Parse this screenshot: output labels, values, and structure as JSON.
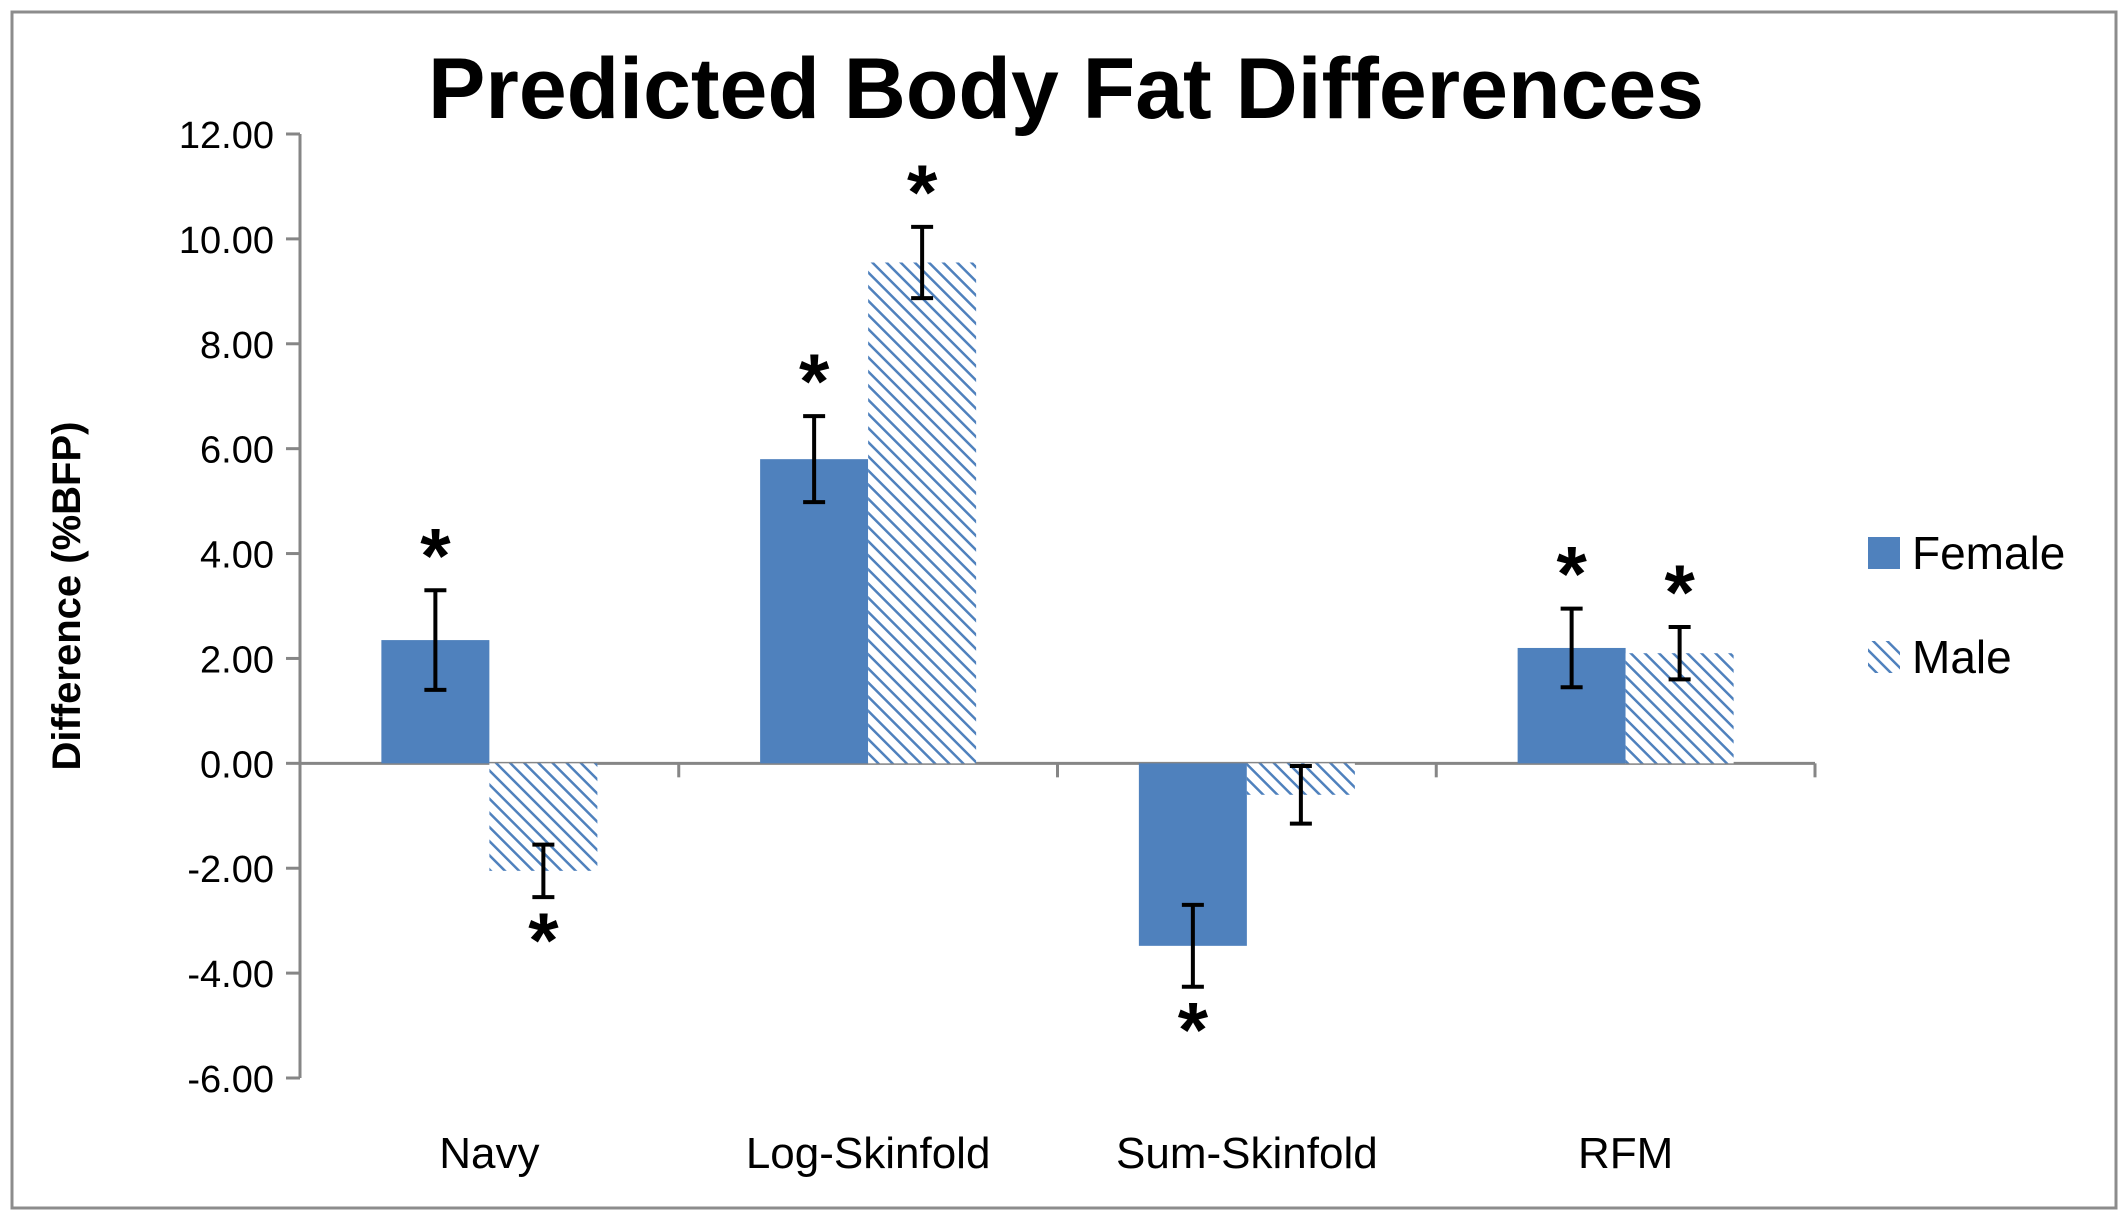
{
  "chart_data": {
    "type": "bar",
    "title": "Predicted Body Fat Differences",
    "xlabel": "",
    "ylabel": "Difference (%BFP)",
    "ylim": [
      -6,
      12
    ],
    "yticks": [
      12,
      10,
      8,
      6,
      4,
      2,
      0,
      -2,
      -4,
      -6
    ],
    "ytick_labels": [
      "12.00",
      "10.00",
      "8.00",
      "6.00",
      "4.00",
      "2.00",
      "0.00",
      "-2.00",
      "-4.00",
      "-6.00"
    ],
    "categories": [
      "Navy",
      "Log-Skinfold",
      "Sum-Skinfold",
      "RFM"
    ],
    "series": [
      {
        "name": "Female",
        "fill": "solid",
        "color": "#4f81bd",
        "values": [
          2.35,
          5.8,
          -3.48,
          2.2
        ],
        "error": [
          0.95,
          0.82,
          0.78,
          0.75
        ],
        "significant": [
          true,
          true,
          true,
          true
        ]
      },
      {
        "name": "Male",
        "fill": "hatched",
        "color": "#4f81bd",
        "values": [
          -2.05,
          9.55,
          -0.6,
          2.1
        ],
        "error": [
          0.5,
          0.68,
          0.55,
          0.5
        ],
        "significant": [
          true,
          true,
          false,
          true
        ]
      }
    ],
    "significance_marker": "*",
    "grid": false,
    "legend_position": "right"
  }
}
